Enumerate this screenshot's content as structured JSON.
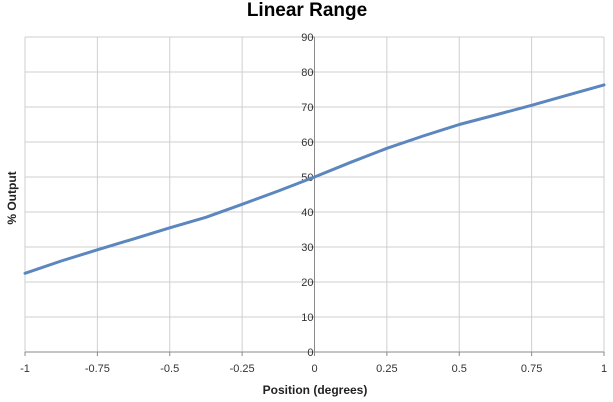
{
  "chart_data": {
    "type": "line",
    "title": "Linear Range",
    "xlabel": "Position (degrees)",
    "ylabel": "% Output",
    "xlim": [
      -1,
      1
    ],
    "ylim": [
      0,
      90
    ],
    "x_ticks": [
      -1,
      -0.75,
      -0.5,
      -0.25,
      0,
      0.25,
      0.5,
      0.75,
      1
    ],
    "x_tick_labels": [
      "-1",
      "-0.75",
      "-0.5",
      "-0.25",
      "0",
      "0.25",
      "0.5",
      "0.75",
      "1"
    ],
    "y_ticks": [
      0,
      10,
      20,
      30,
      40,
      50,
      60,
      70,
      80,
      90
    ],
    "y_tick_labels": [
      "0",
      "10",
      "20",
      "30",
      "40",
      "50",
      "60",
      "70",
      "80",
      "90"
    ],
    "grid": true,
    "legend": "none",
    "series": [
      {
        "color": "#5b87be",
        "x": [
          -1,
          -0.875,
          -0.75,
          -0.625,
          -0.5,
          -0.375,
          -0.25,
          -0.125,
          0,
          0.125,
          0.25,
          0.375,
          0.5,
          0.625,
          0.75,
          0.875,
          1
        ],
        "y": [
          22.5,
          26,
          29.2,
          32.3,
          35.5,
          38.5,
          42.2,
          46,
          50,
          54.2,
          58.2,
          61.7,
          65,
          67.7,
          70.5,
          73.4,
          76.3
        ]
      }
    ]
  }
}
